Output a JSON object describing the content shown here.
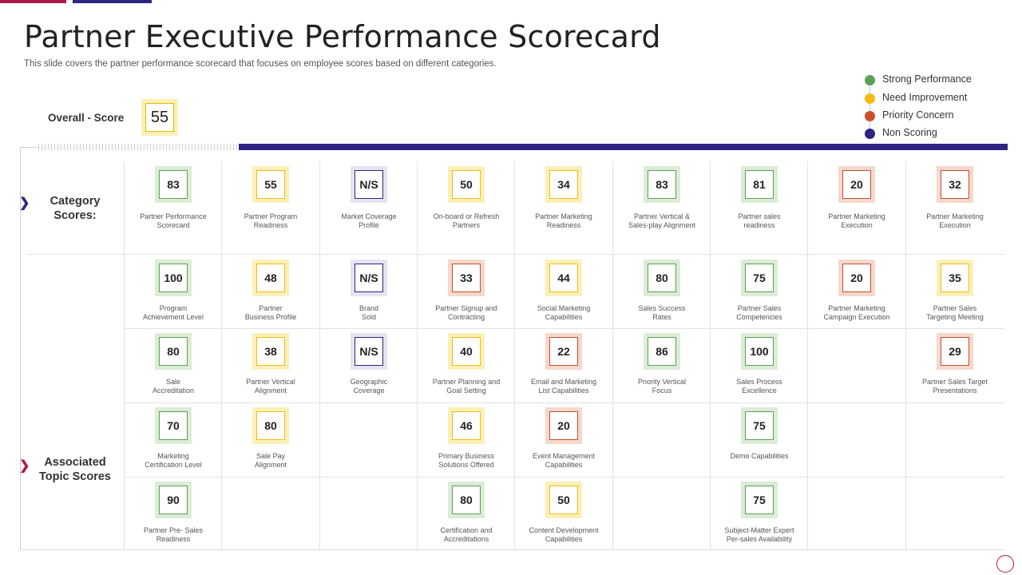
{
  "header": {
    "title": "Partner Executive Performance Scorecard",
    "subtitle": "This slide covers the partner performance scorecard that focuses on employee scores based on different categories."
  },
  "colors": {
    "strong": "#5aa05a",
    "improve": "#f2bb0f",
    "priority": "#c8502a",
    "nonscoring": "#2b2483",
    "accent_pink": "#b0174d",
    "accent_navy": "#2b2483"
  },
  "legend": [
    {
      "label": "Strong Performance",
      "status": "strong"
    },
    {
      "label": "Need Improvement",
      "status": "improve"
    },
    {
      "label": "Priority Concern",
      "status": "priority"
    },
    {
      "label": "Non Scoring",
      "status": "nonscoring"
    }
  ],
  "overall": {
    "label": "Overall - Score",
    "value": "55"
  },
  "sections": {
    "category": "Category\nScores:",
    "topic": "Associated\nTopic Scores"
  },
  "icons": [
    "chevron-right-icon",
    "chevron-right-icon"
  ],
  "category_scores": [
    {
      "value": "83",
      "label": "Partner Performance\nScorecard",
      "status": "strong"
    },
    {
      "value": "55",
      "label": "Partner Program\nReadiness",
      "status": "improve"
    },
    {
      "value": "N/S",
      "label": "Market Coverage\nProfile",
      "status": "nonscoring"
    },
    {
      "value": "50",
      "label": "On-board or Refresh\nPartners",
      "status": "improve"
    },
    {
      "value": "34",
      "label": "Partner Marketing\nReadiness",
      "status": "improve"
    },
    {
      "value": "83",
      "label": "Partner Vertical &\nSales-play Alignment",
      "status": "strong"
    },
    {
      "value": "81",
      "label": "Partner sales\nreadiness",
      "status": "strong"
    },
    {
      "value": "20",
      "label": "Partner Marketing\nExecution",
      "status": "priority"
    },
    {
      "value": "32",
      "label": "Partner Marketing\nExecution",
      "status": "priority"
    }
  ],
  "topic_rows": [
    [
      {
        "value": "100",
        "label": "Program\nAchievement Level",
        "status": "strong"
      },
      {
        "value": "48",
        "label": "Partner\nBusiness Profile",
        "status": "improve"
      },
      {
        "value": "N/S",
        "label": "Brand\nSold",
        "status": "nonscoring"
      },
      {
        "value": "33",
        "label": "Partner Signup and\nContracting",
        "status": "priority"
      },
      {
        "value": "44",
        "label": "Social Marketing\nCapabilities",
        "status": "improve"
      },
      {
        "value": "80",
        "label": "Sales Success\nRates",
        "status": "strong"
      },
      {
        "value": "75",
        "label": "Partner Sales\nCompetencies",
        "status": "strong"
      },
      {
        "value": "20",
        "label": "Partner Marketing\nCampaign Execution",
        "status": "priority"
      },
      {
        "value": "35",
        "label": "Partner Sales\nTargeting Meeting",
        "status": "improve"
      }
    ],
    [
      {
        "value": "80",
        "label": "Sale\nAccreditation",
        "status": "strong"
      },
      {
        "value": "38",
        "label": "Partner Vertical\nAlignment",
        "status": "improve"
      },
      {
        "value": "N/S",
        "label": "Geographic\nCoverage",
        "status": "nonscoring"
      },
      {
        "value": "40",
        "label": "Partner Planning and\nGoal Setting",
        "status": "improve"
      },
      {
        "value": "22",
        "label": "Email and Marketing\nList Capabilities",
        "status": "priority"
      },
      {
        "value": "86",
        "label": "Priority Vertical\nFocus",
        "status": "strong"
      },
      {
        "value": "100",
        "label": "Sales Process\nExcellence",
        "status": "strong"
      },
      null,
      {
        "value": "29",
        "label": "Partner Sales Target\nPresentations",
        "status": "priority"
      }
    ],
    [
      {
        "value": "70",
        "label": "Marketing\nCertification Level",
        "status": "strong"
      },
      {
        "value": "80",
        "label": "Sale Pay\nAlignment",
        "status": "improve"
      },
      null,
      {
        "value": "46",
        "label": "Primary Business\nSolutions Offered",
        "status": "improve"
      },
      {
        "value": "20",
        "label": "Event Management\nCapabilities",
        "status": "priority"
      },
      null,
      {
        "value": "75",
        "label": "Demo Capabilities",
        "status": "strong"
      },
      null,
      null
    ],
    [
      {
        "value": "90",
        "label": "Partner Pre- Sales\nReadiness",
        "status": "strong"
      },
      null,
      null,
      {
        "value": "80",
        "label": "Certification and\nAccreditations",
        "status": "strong"
      },
      {
        "value": "50",
        "label": "Content Development\nCapabilities",
        "status": "improve"
      },
      null,
      {
        "value": "75",
        "label": "Subject-Matter Expert\nPer-sales Availability",
        "status": "strong"
      },
      null,
      null
    ]
  ]
}
